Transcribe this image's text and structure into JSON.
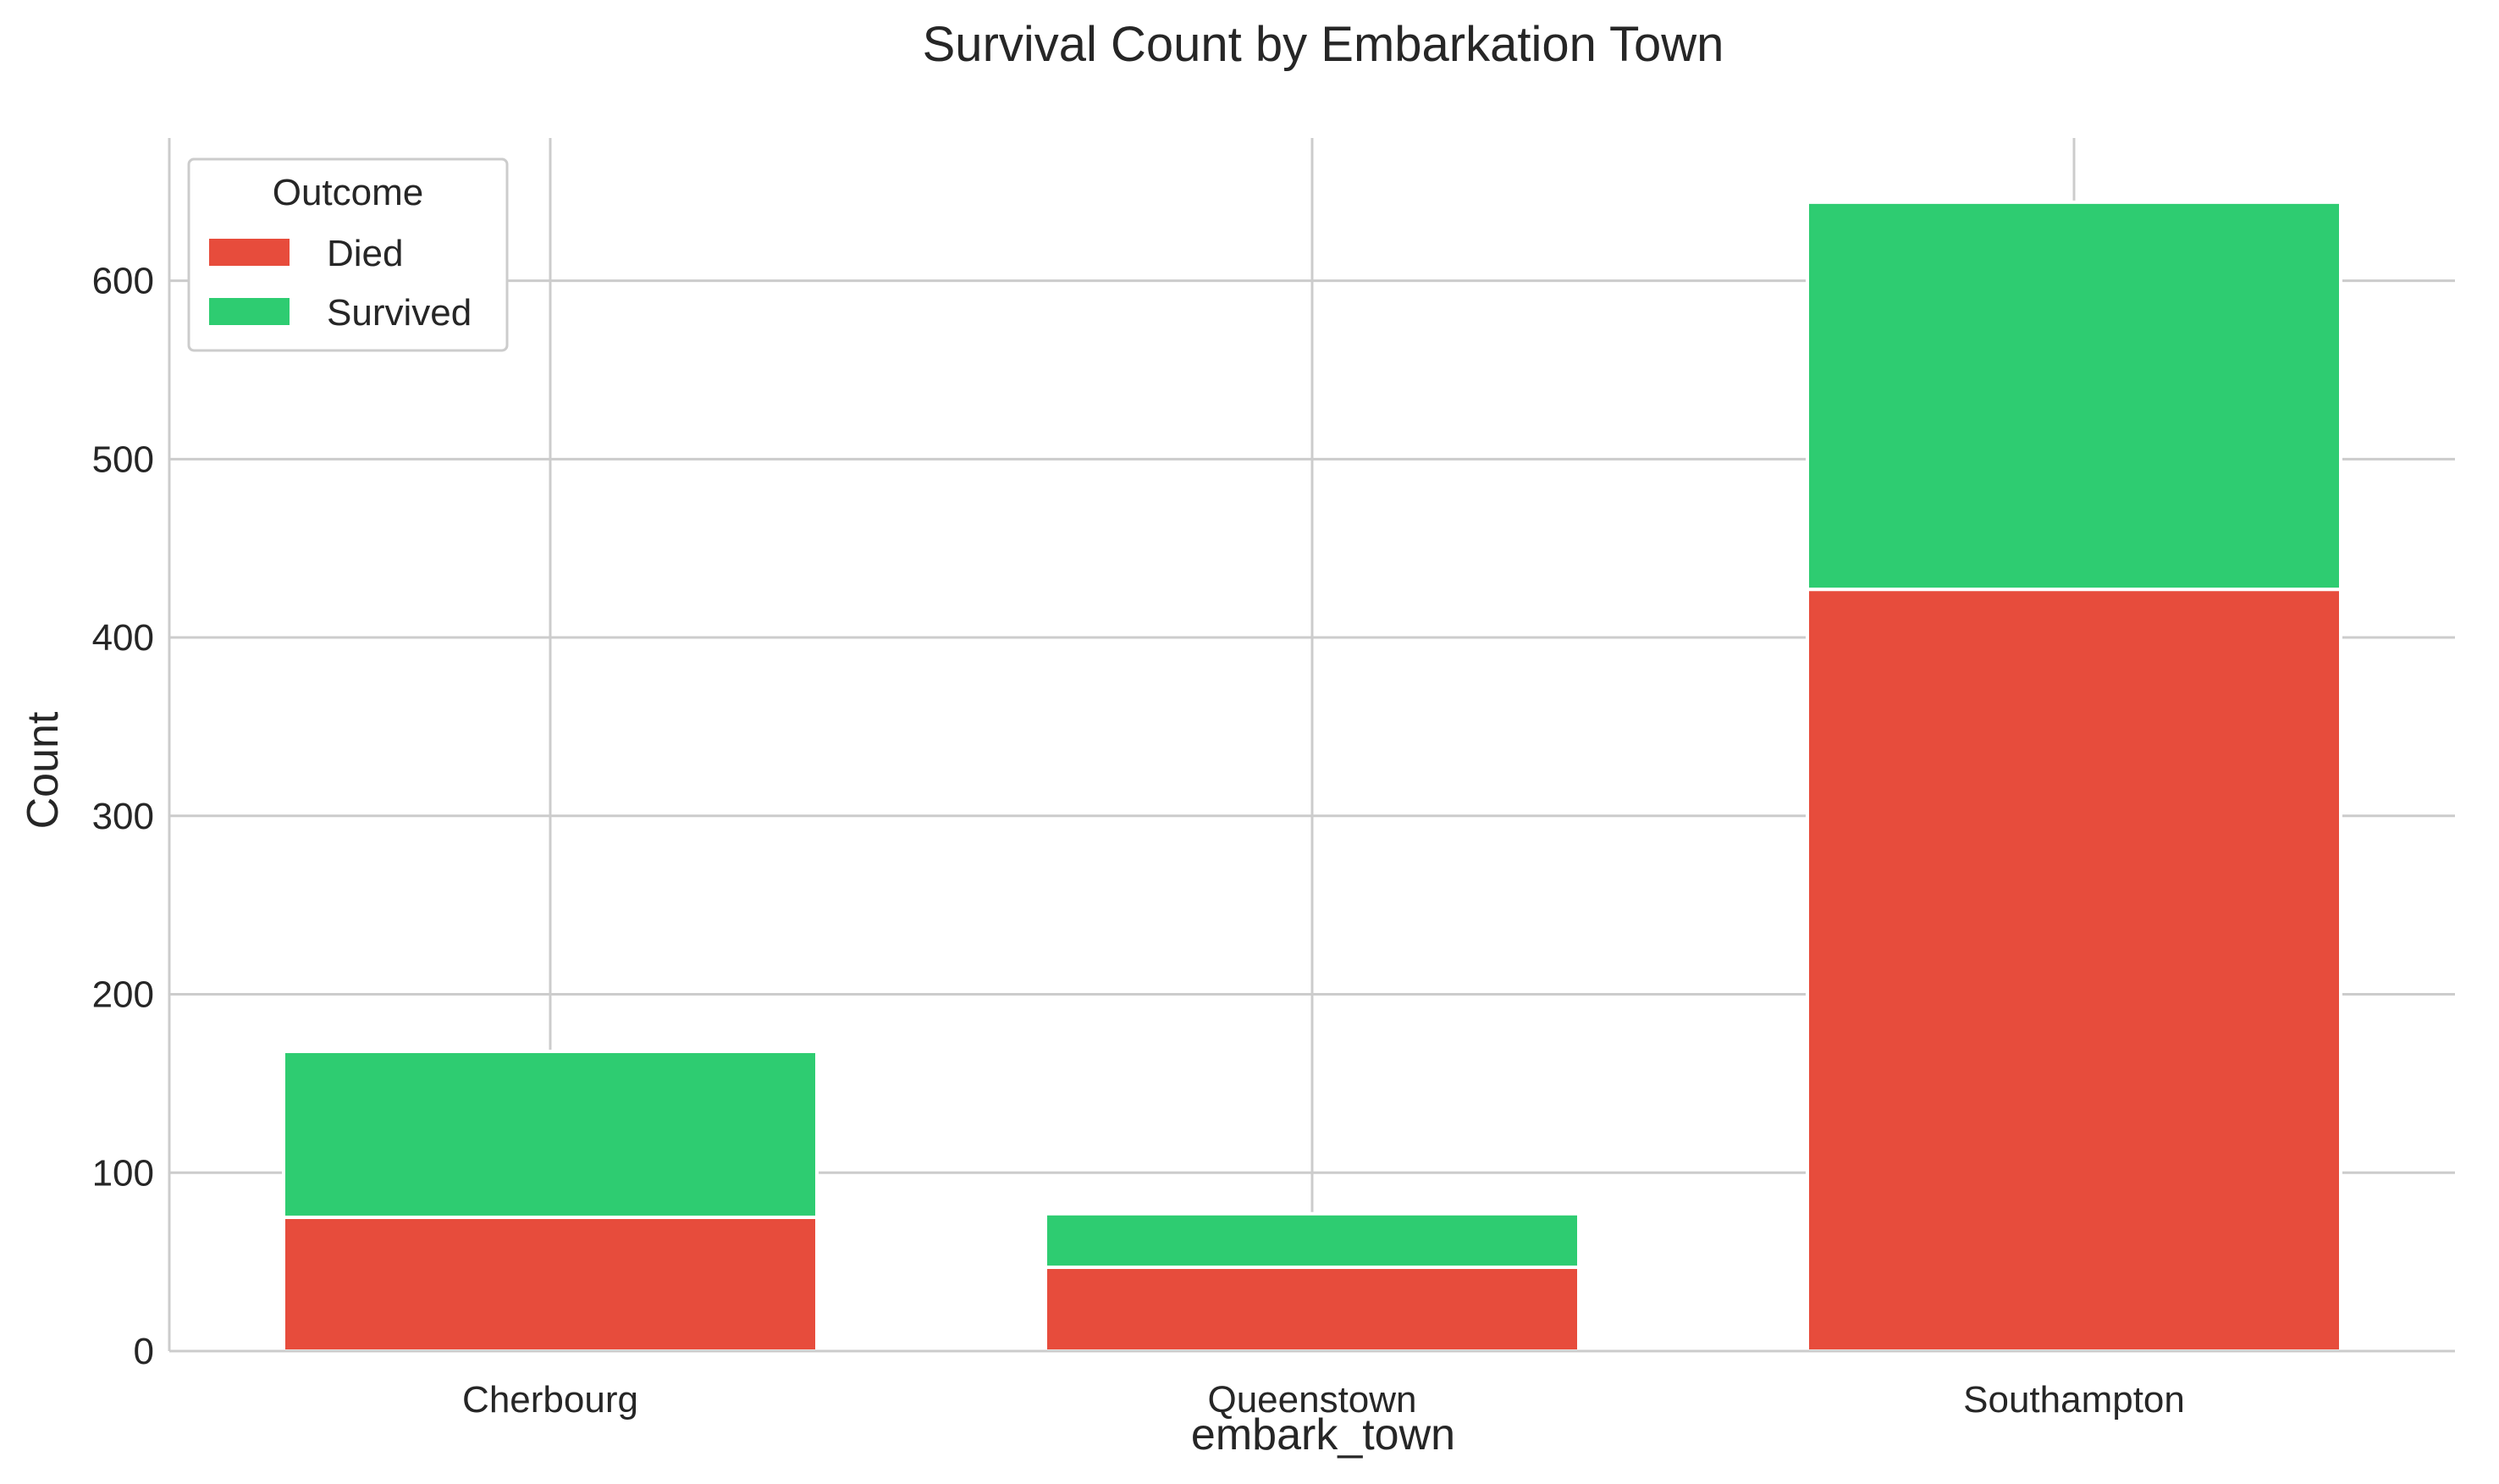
{
  "chart_data": {
    "type": "bar",
    "stacked": true,
    "title": "Survival Count by Embarkation Town",
    "xlabel": "embark_town",
    "ylabel": "Count",
    "categories": [
      "Cherbourg",
      "Queenstown",
      "Southampton"
    ],
    "series": [
      {
        "name": "Died",
        "values": [
          75,
          47,
          427
        ],
        "color": "#e74c3c"
      },
      {
        "name": "Survived",
        "values": [
          93,
          30,
          217
        ],
        "color": "#2ecc71"
      }
    ],
    "ylim": [
      0,
      680
    ],
    "yticks": [
      0,
      100,
      200,
      300,
      400,
      500,
      600
    ],
    "grid": true,
    "legend": {
      "title": "Outcome",
      "placement": "top-left"
    }
  }
}
